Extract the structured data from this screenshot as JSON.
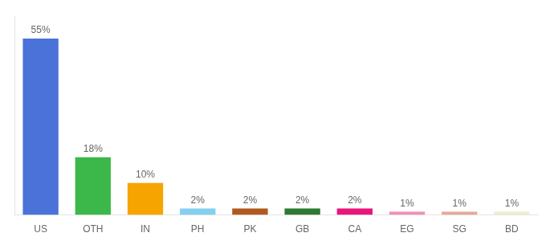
{
  "chart_data": {
    "type": "bar",
    "categories": [
      "US",
      "OTH",
      "IN",
      "PH",
      "PK",
      "GB",
      "CA",
      "EG",
      "SG",
      "BD"
    ],
    "values": [
      55,
      18,
      10,
      2,
      2,
      2,
      2,
      1,
      1,
      1
    ],
    "value_labels": [
      "55%",
      "18%",
      "10%",
      "2%",
      "2%",
      "2%",
      "2%",
      "1%",
      "1%",
      "1%"
    ],
    "colors": [
      "#4a72d8",
      "#3cb84a",
      "#f5a400",
      "#85cff0",
      "#b05a20",
      "#2d7a30",
      "#e8157a",
      "#f090b8",
      "#e8a898",
      "#f0ecd0"
    ],
    "ylim": [
      0,
      62
    ],
    "grid": false,
    "data_labels": true,
    "tick_labels": "x"
  }
}
